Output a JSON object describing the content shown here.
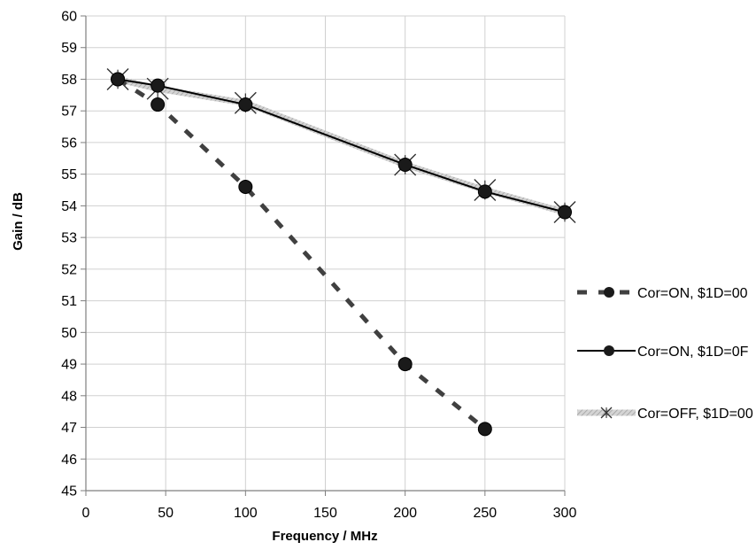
{
  "chart_data": {
    "type": "line",
    "title": "",
    "xlabel": "Frequency / MHz",
    "ylabel": "Gain / dB",
    "xlim": [
      0,
      300
    ],
    "ylim": [
      45,
      60
    ],
    "x_ticks": [
      "0",
      "50",
      "100",
      "150",
      "200",
      "250",
      "300"
    ],
    "y_ticks": [
      "45",
      "46",
      "47",
      "48",
      "49",
      "50",
      "51",
      "52",
      "53",
      "54",
      "55",
      "56",
      "57",
      "58",
      "59",
      "60"
    ],
    "grid": true,
    "legend_position": "right",
    "series": [
      {
        "name": "Cor=ON, $1D=00",
        "style": "dashed",
        "marker": "circle",
        "color": "#404040",
        "x": [
          20,
          45,
          100,
          200,
          250
        ],
        "y": [
          58.0,
          57.2,
          54.6,
          49.0,
          46.95
        ]
      },
      {
        "name": "Cor=ON, $1D=0F",
        "style": "solid",
        "marker": "circle",
        "color": "#000000",
        "x": [
          20,
          45,
          100,
          200,
          250,
          300
        ],
        "y": [
          58.0,
          57.8,
          57.2,
          55.3,
          54.45,
          53.8
        ]
      },
      {
        "name": "Cor=OFF, $1D=00",
        "style": "hatched",
        "marker": "star",
        "color": "#b8b8b8",
        "x": [
          20,
          45,
          100,
          200,
          250,
          300
        ],
        "y": [
          58.0,
          57.7,
          57.25,
          55.3,
          54.5,
          53.8
        ]
      }
    ]
  }
}
